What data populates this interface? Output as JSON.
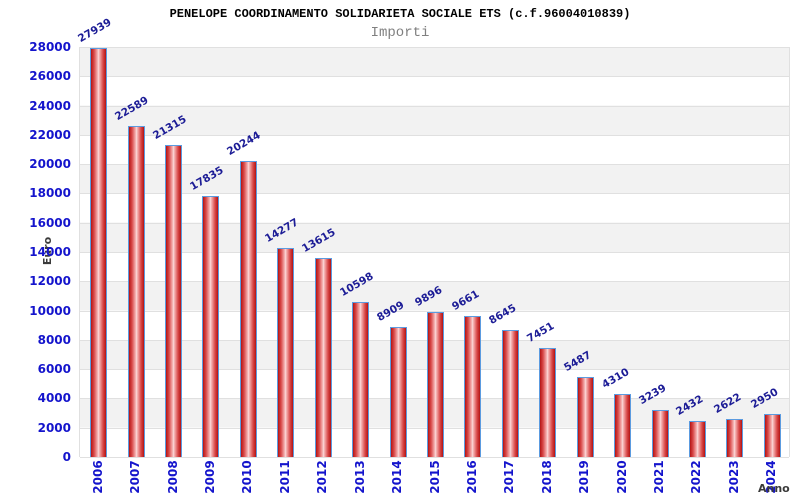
{
  "chart_data": {
    "type": "bar",
    "title": "PENELOPE COORDINAMENTO SOLIDARIETA SOCIALE ETS (c.f.96004010839)",
    "subtitle": "Importi",
    "xlabel": "Anno",
    "ylabel": "Euro",
    "categories": [
      "2006",
      "2007",
      "2008",
      "2009",
      "2010",
      "2011",
      "2012",
      "2013",
      "2014",
      "2015",
      "2016",
      "2017",
      "2018",
      "2019",
      "2020",
      "2021",
      "2022",
      "2023",
      "2024"
    ],
    "values": [
      27939,
      22589,
      21315,
      17835,
      20244,
      14277,
      13615,
      10598,
      8909,
      9896,
      9661,
      8645,
      7451,
      5487,
      4310,
      3239,
      2432,
      2622,
      2950
    ],
    "ylim": [
      0,
      28000
    ],
    "ytick_step": 2000,
    "grid": "alternating-horizontal-bands",
    "legend": "none",
    "colors": {
      "bar_fill": "#cc1414",
      "bar_fill_highlight": "#fbdcdc",
      "bar_border": "#5b9be0",
      "value_label": "#1c1c96",
      "axis_tick_label": "#1414cc",
      "axis_title": "#3a3a3a",
      "title_text": "#000000",
      "subtitle_text": "#808080",
      "band_gray": "#f2f2f2",
      "band_white": "#ffffff",
      "gridline": "#e0e0e0"
    }
  }
}
